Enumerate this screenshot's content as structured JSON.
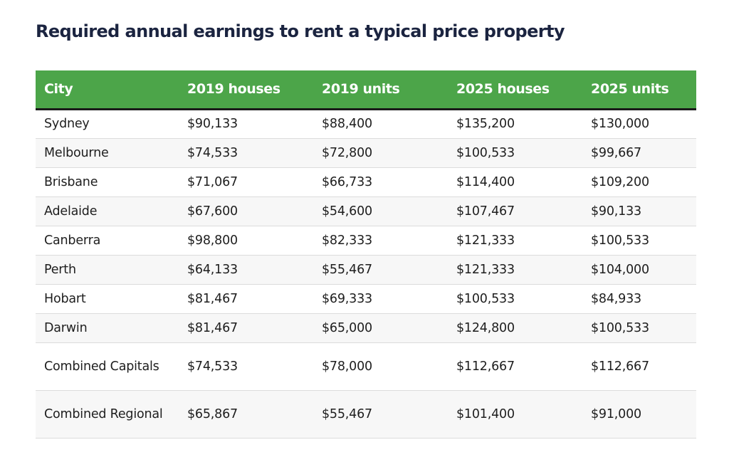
{
  "chart_data": {
    "type": "table",
    "title": "Required annual earnings to rent a typical price property",
    "columns": [
      "City",
      "2019 houses",
      "2019 units",
      "2025 houses",
      "2025 units"
    ],
    "rows": [
      [
        "Sydney",
        "$90,133",
        "$88,400",
        "$135,200",
        "$130,000"
      ],
      [
        "Melbourne",
        "$74,533",
        "$72,800",
        "$100,533",
        "$99,667"
      ],
      [
        "Brisbane",
        "$71,067",
        "$66,733",
        "$114,400",
        "$109,200"
      ],
      [
        "Adelaide",
        "$67,600",
        "$54,600",
        "$107,467",
        "$90,133"
      ],
      [
        "Canberra",
        "$98,800",
        "$82,333",
        "$121,333",
        "$100,533"
      ],
      [
        "Perth",
        "$64,133",
        "$55,467",
        "$121,333",
        "$104,000"
      ],
      [
        "Hobart",
        "$81,467",
        "$69,333",
        "$100,533",
        "$84,933"
      ],
      [
        "Darwin",
        "$81,467",
        "$65,000",
        "$124,800",
        "$100,533"
      ],
      [
        "Combined Capitals",
        "$74,533",
        "$78,000",
        "$112,667",
        "$112,667"
      ],
      [
        "Combined Regional",
        "$65,867",
        "$55,467",
        "$101,400",
        "$91,000"
      ]
    ],
    "colors": {
      "header_background": "#4ca549",
      "header_text": "#ffffff",
      "title_text": "#1b2440",
      "stripe": "#f7f7f7"
    }
  }
}
